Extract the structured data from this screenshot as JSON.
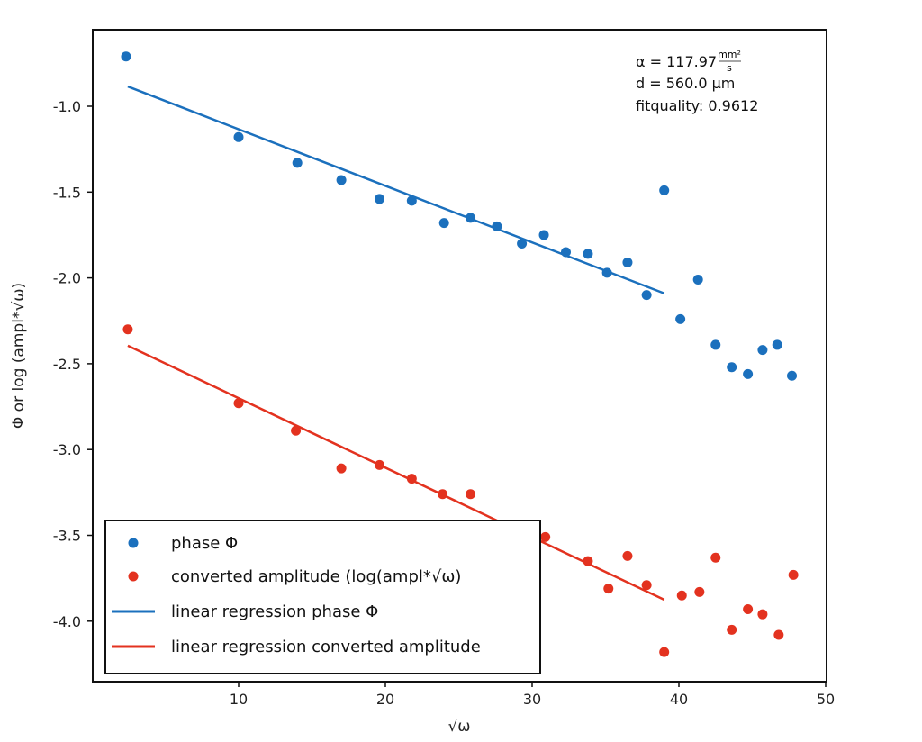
{
  "chart_data": {
    "type": "scatter",
    "title": "",
    "xlabel": "√ω",
    "ylabel": "Φ or log (ampl*√ω)",
    "xlim": [
      0,
      50
    ],
    "ylim": [
      -4.35,
      -0.6
    ],
    "xticks": [
      10,
      20,
      30,
      40,
      50
    ],
    "yticks": [
      -1.0,
      -1.5,
      -2.0,
      -2.5,
      -3.0,
      -3.5,
      -4.0
    ],
    "xtick_labels": [
      "10",
      "20",
      "30",
      "40",
      "50"
    ],
    "ytick_labels": [
      "-1.0",
      "-1.5",
      "-2.0",
      "-2.5",
      "-3.0",
      "-3.5",
      "-4.0"
    ],
    "grid": false,
    "legend_position": "bottom-left",
    "colors": {
      "phase": "#1b70bd",
      "amplitude": "#e3321f"
    },
    "series": [
      {
        "name": "phase Φ",
        "kind": "points",
        "color": "#1b70bd",
        "x": [
          2.33,
          10.0,
          14.0,
          17.0,
          19.6,
          21.8,
          24.0,
          25.8,
          27.6,
          29.3,
          30.8,
          32.3,
          33.8,
          35.1,
          36.5,
          37.8,
          39.0,
          40.1,
          41.3,
          42.5,
          43.6,
          44.7,
          45.7,
          46.7,
          47.7
        ],
        "y": [
          -0.71,
          -1.18,
          -1.33,
          -1.43,
          -1.54,
          -1.55,
          -1.68,
          -1.65,
          -1.7,
          -1.8,
          -1.75,
          -1.85,
          -1.86,
          -1.97,
          -1.91,
          -2.1,
          -1.49,
          -2.24,
          -2.01,
          -2.39,
          -2.52,
          -2.56,
          -2.42,
          -2.39,
          -2.57
        ]
      },
      {
        "name": "converted amplitude (log(ampl*√ω)",
        "kind": "points",
        "color": "#e3321f",
        "x": [
          2.45,
          10.0,
          13.9,
          17.0,
          19.6,
          21.8,
          23.9,
          25.8,
          27.6,
          29.1,
          30.9,
          33.8,
          35.2,
          36.5,
          37.8,
          39.0,
          40.2,
          41.4,
          42.5,
          43.6,
          44.7,
          45.7,
          46.8,
          47.8
        ],
        "y": [
          -2.3,
          -2.73,
          -2.89,
          -3.11,
          -3.09,
          -3.17,
          -3.26,
          -3.26,
          -3.51,
          -3.48,
          -3.51,
          -3.65,
          -3.81,
          -3.62,
          -3.79,
          -4.18,
          -3.85,
          -3.83,
          -3.63,
          -4.05,
          -3.93,
          -3.96,
          -4.08,
          -3.73
        ]
      },
      {
        "name": "linear regression phase Φ",
        "kind": "line",
        "color": "#1b70bd",
        "x": [
          2.45,
          39.0
        ],
        "y": [
          -0.885,
          -2.09
        ]
      },
      {
        "name": "linear regression converted amplitude",
        "kind": "line",
        "color": "#e3321f",
        "x": [
          2.45,
          39.0
        ],
        "y": [
          -2.395,
          -3.875
        ]
      }
    ],
    "annotations": {
      "alpha_prefix": "α = 117.97",
      "alpha_unit_num": "mm²",
      "alpha_unit_den": "s",
      "thickness": "d = 560.0 µm",
      "fitquality": "fitquality: 0.9612"
    }
  }
}
